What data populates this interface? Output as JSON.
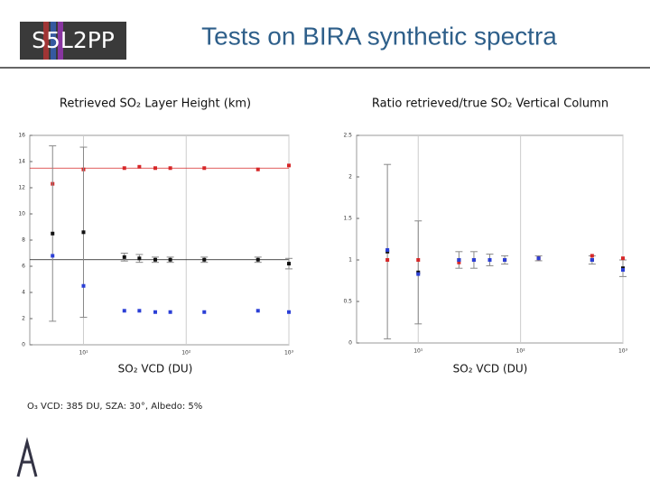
{
  "header": {
    "logo": "S5L2PP",
    "title": "Tests on BIRA synthetic spectra"
  },
  "footnote": "O₃ VCD: 385 DU, SZA: 30°, Albedo: 5%",
  "chart_data": [
    {
      "type": "scatter",
      "title": "Retrieved SO₂ Layer Height (km)",
      "x_label": "SO₂ VCD (DU)",
      "x": [
        5,
        10,
        25,
        35,
        50,
        70,
        150,
        500,
        1000
      ],
      "series": [
        {
          "color": "#d62728",
          "values": [
            12.3,
            13.4,
            13.5,
            13.6,
            13.5,
            13.5,
            13.5,
            13.4,
            13.7
          ]
        },
        {
          "color": "#111111",
          "values": [
            8.5,
            8.6,
            6.7,
            6.6,
            6.5,
            6.5,
            6.5,
            6.5,
            6.2
          ],
          "errors": [
            6.7,
            6.5,
            0.3,
            0.3,
            0.2,
            0.2,
            0.2,
            0.2,
            0.4
          ]
        },
        {
          "color": "#2b3fd6",
          "values": [
            6.8,
            4.5,
            2.6,
            2.6,
            2.5,
            2.5,
            2.5,
            2.6,
            2.5
          ]
        }
      ],
      "hlines": [
        {
          "value": 13.5,
          "color": "#d62728"
        },
        {
          "value": 6.5,
          "color": "#111111"
        }
      ],
      "xlim": [
        3,
        1000
      ],
      "ylim": [
        0,
        16
      ],
      "xticks": [
        {
          "value": 10,
          "label": "10¹"
        },
        {
          "value": 100,
          "label": "10²"
        },
        {
          "value": 1000,
          "label": "10³"
        }
      ],
      "yticks": [
        0,
        2,
        4,
        6,
        8,
        10,
        12,
        14,
        16
      ],
      "xlog": true,
      "grid": true
    },
    {
      "type": "scatter",
      "title": "Ratio retrieved/true SO₂ Vertical Column",
      "x_label": "SO₂ VCD (DU)",
      "x": [
        5,
        10,
        25,
        35,
        50,
        70,
        150,
        500,
        1000
      ],
      "series": [
        {
          "color": "#111111",
          "values": [
            1.1,
            0.85,
            1.0,
            1.0,
            1.0,
            1.0,
            1.02,
            1.0,
            0.9
          ],
          "errors": [
            1.05,
            0.62,
            0.1,
            0.1,
            0.07,
            0.05,
            0.03,
            0.05,
            0.1
          ]
        },
        {
          "color": "#d62728",
          "values": [
            1.0,
            1.0,
            0.97,
            1.0,
            1.0,
            1.0,
            1.02,
            1.05,
            1.02
          ]
        },
        {
          "color": "#2b3fd6",
          "values": [
            1.12,
            0.83,
            1.0,
            1.0,
            1.0,
            1.0,
            1.02,
            1.0,
            0.88
          ]
        }
      ],
      "xlim": [
        2.5,
        1000
      ],
      "ylim": [
        0,
        2.5
      ],
      "xticks": [
        {
          "value": 10,
          "label": "10¹"
        },
        {
          "value": 100,
          "label": "10²"
        },
        {
          "value": 1000,
          "label": "10³"
        }
      ],
      "yticks": [
        0,
        0.5,
        1,
        1.5,
        2,
        2.5
      ],
      "xlog": true,
      "grid": true
    }
  ]
}
